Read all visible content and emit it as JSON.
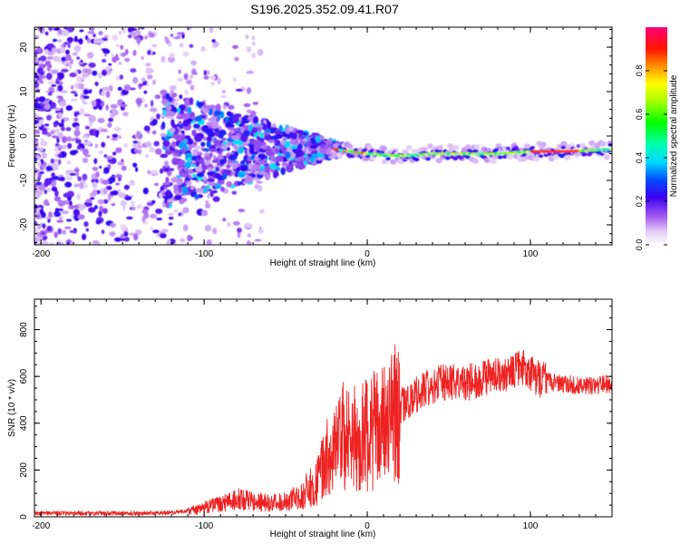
{
  "title": "S196.2025.352.09.41.R07",
  "chart_data": [
    {
      "type": "heatmap",
      "xlabel": "Height of straight line (km)",
      "ylabel": "Frequency (Hz)",
      "xlim": [
        -204,
        150
      ],
      "ylim": [
        -24.5,
        24.5
      ],
      "xticks": [
        -200,
        -100,
        0,
        100
      ],
      "yticks": [
        -20,
        -10,
        0,
        10,
        20
      ],
      "colorbar": {
        "label": "Normalized spectral amplitude",
        "range": [
          0,
          1
        ],
        "ticks": [
          0.0,
          0.2,
          0.4,
          0.6,
          0.8
        ]
      },
      "ridge": {
        "description": "narrow-band carrier ridge",
        "x": [
          -20,
          0,
          20,
          40,
          60,
          80,
          100,
          120,
          150
        ],
        "frequency_hz": [
          -3,
          -4,
          -4.5,
          -4,
          -4,
          -4,
          -3.5,
          -3.5,
          -3
        ]
      }
    },
    {
      "type": "line",
      "xlabel": "Height of straight line (km)",
      "ylabel": "SNR (10 * v/v)",
      "xlim": [
        -204,
        150
      ],
      "ylim": [
        0,
        930
      ],
      "xticks": [
        -200,
        -100,
        0,
        100
      ],
      "yticks": [
        0,
        200,
        400,
        600,
        800
      ],
      "series": [
        {
          "name": "SNR",
          "color": "#ee2222",
          "x": [
            -204,
            -180,
            -160,
            -140,
            -120,
            -110,
            -100,
            -90,
            -80,
            -70,
            -60,
            -50,
            -40,
            -30,
            -25,
            -20,
            -15,
            -10,
            0,
            10,
            20,
            30,
            40,
            50,
            60,
            70,
            80,
            90,
            95,
            100,
            105,
            110,
            120,
            130,
            140,
            150
          ],
          "y": [
            15,
            15,
            15,
            15,
            18,
            25,
            40,
            55,
            75,
            70,
            60,
            65,
            90,
            160,
            250,
            300,
            340,
            330,
            360,
            390,
            470,
            520,
            560,
            580,
            570,
            590,
            610,
            620,
            640,
            610,
            590,
            580,
            570,
            560,
            560,
            570
          ]
        }
      ]
    }
  ]
}
